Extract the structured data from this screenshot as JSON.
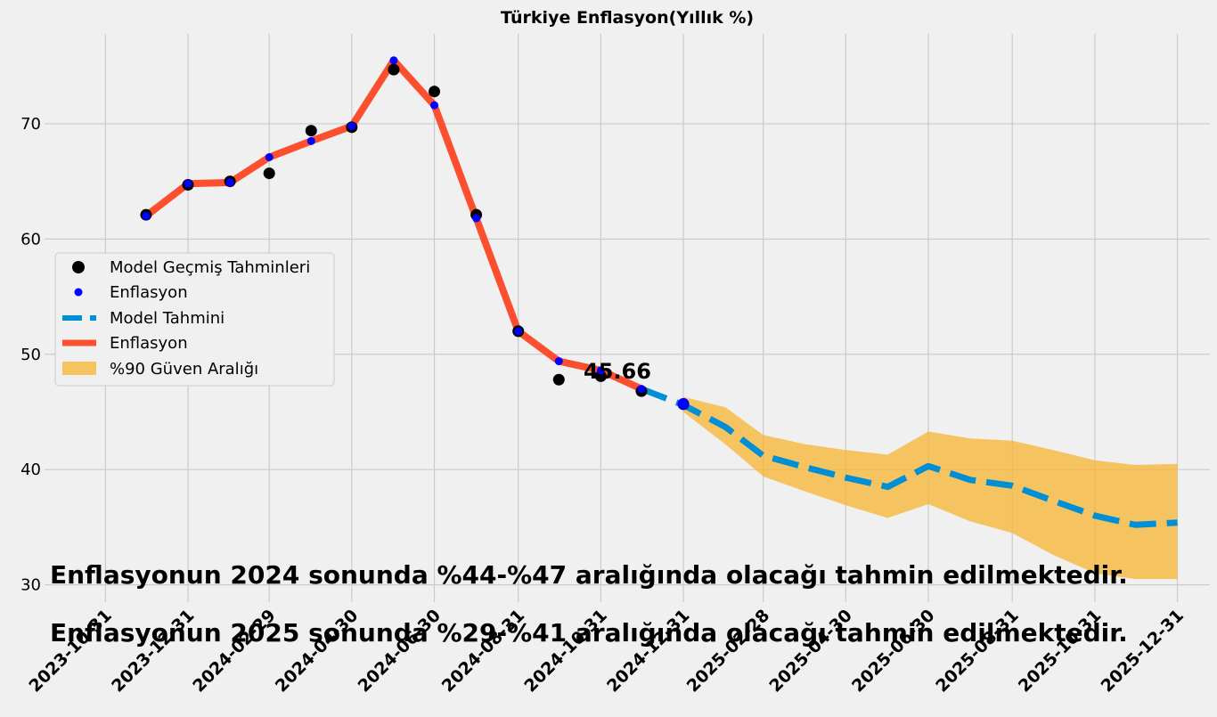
{
  "chart_data": {
    "type": "line",
    "title": "Türkiye Enflasyon(Yıllık %)",
    "xlabel": "",
    "ylabel": "",
    "ylim": [
      28.5,
      77.8
    ],
    "yticks": [
      30,
      40,
      50,
      60,
      70
    ],
    "xlim": [
      "2023-09-16",
      "2026-01-24"
    ],
    "xtick_labels": [
      "2023-10-31",
      "2023-12-31",
      "2024-02-29",
      "2024-04-30",
      "2024-06-30",
      "2024-08-31",
      "2024-10-31",
      "2024-12-31",
      "2025-02-28",
      "2025-04-30",
      "2025-06-30",
      "2025-08-31",
      "2025-10-31",
      "2025-12-31"
    ],
    "grid": true,
    "legend_placement": "center-left",
    "colors": {
      "actual_line": "#fc4f30",
      "forecast_line": "#008fd5",
      "confidence_band": "#f8b432",
      "history_points": "#000000",
      "actual_points": "#0000ff",
      "background": "#f0f0f0",
      "grid": "#cbcbcb"
    },
    "series": [
      {
        "name": "Model Geçmiş Tahminleri",
        "kind": "scatter",
        "x": [
          "2023-11-30",
          "2023-12-31",
          "2024-01-31",
          "2024-02-29",
          "2024-03-31",
          "2024-04-30",
          "2024-05-31",
          "2024-06-30",
          "2024-07-31",
          "2024-08-31",
          "2024-09-30",
          "2024-10-31",
          "2024-11-30",
          "2024-12-31"
        ],
        "y": [
          62.1,
          64.7,
          65.0,
          65.7,
          69.4,
          69.7,
          74.7,
          72.8,
          62.1,
          52.0,
          47.8,
          48.1,
          46.8,
          45.66
        ]
      },
      {
        "name": "Enflasyon",
        "kind": "scatter",
        "x": [
          "2023-11-30",
          "2023-12-31",
          "2024-01-31",
          "2024-02-29",
          "2024-03-31",
          "2024-04-30",
          "2024-05-31",
          "2024-06-30",
          "2024-07-31",
          "2024-08-31",
          "2024-09-30",
          "2024-10-31",
          "2024-11-30",
          "2024-12-31"
        ],
        "y": [
          62.0,
          64.8,
          64.9,
          67.1,
          68.5,
          69.8,
          75.5,
          71.6,
          61.8,
          52.0,
          49.4,
          48.6,
          47.0,
          45.7
        ]
      },
      {
        "name": "Model Tahmini",
        "kind": "dashed-line",
        "x": [
          "2024-11-30",
          "2024-12-31",
          "2025-01-31",
          "2025-02-28",
          "2025-03-31",
          "2025-04-30",
          "2025-05-31",
          "2025-06-30",
          "2025-07-31",
          "2025-08-31",
          "2025-09-30",
          "2025-10-31",
          "2025-11-30",
          "2025-12-31"
        ],
        "y": [
          47.0,
          45.6,
          43.7,
          41.2,
          40.2,
          39.3,
          38.5,
          40.3,
          39.1,
          38.6,
          37.3,
          36.0,
          35.2,
          35.4
        ]
      },
      {
        "name": "Enflasyon",
        "kind": "line",
        "x": [
          "2023-11-30",
          "2023-12-31",
          "2024-01-31",
          "2024-02-29",
          "2024-03-31",
          "2024-04-30",
          "2024-05-31",
          "2024-06-30",
          "2024-07-31",
          "2024-08-31",
          "2024-09-30",
          "2024-10-31",
          "2024-11-30"
        ],
        "y": [
          62.0,
          64.8,
          64.9,
          67.1,
          68.5,
          69.8,
          75.5,
          71.6,
          61.8,
          52.0,
          49.4,
          48.6,
          47.0
        ]
      },
      {
        "name": "%90 Güven Aralığı",
        "kind": "band",
        "x": [
          "2024-12-31",
          "2025-01-31",
          "2025-02-28",
          "2025-03-31",
          "2025-04-30",
          "2025-05-31",
          "2025-06-30",
          "2025-07-31",
          "2025-08-31",
          "2025-09-30",
          "2025-10-31",
          "2025-11-30",
          "2025-12-31"
        ],
        "lower": [
          45.0,
          42.2,
          39.4,
          38.1,
          36.9,
          35.8,
          37.0,
          35.5,
          34.5,
          32.6,
          31.0,
          30.5,
          30.5
        ],
        "upper": [
          46.3,
          45.4,
          43.0,
          42.2,
          41.7,
          41.3,
          43.3,
          42.7,
          42.5,
          41.7,
          40.8,
          40.4,
          40.5
        ]
      }
    ],
    "annotation": {
      "text": "45.66",
      "x": "2024-12-31",
      "y": 45.66
    },
    "notes": [
      "Enflasyonun 2024 sonunda %44-%47 aralığında olacağı tahmin edilmektedir.",
      "Enflasyonun 2025 sonunda %29-%41 aralığında olacağı tahmin edilmektedir."
    ]
  }
}
